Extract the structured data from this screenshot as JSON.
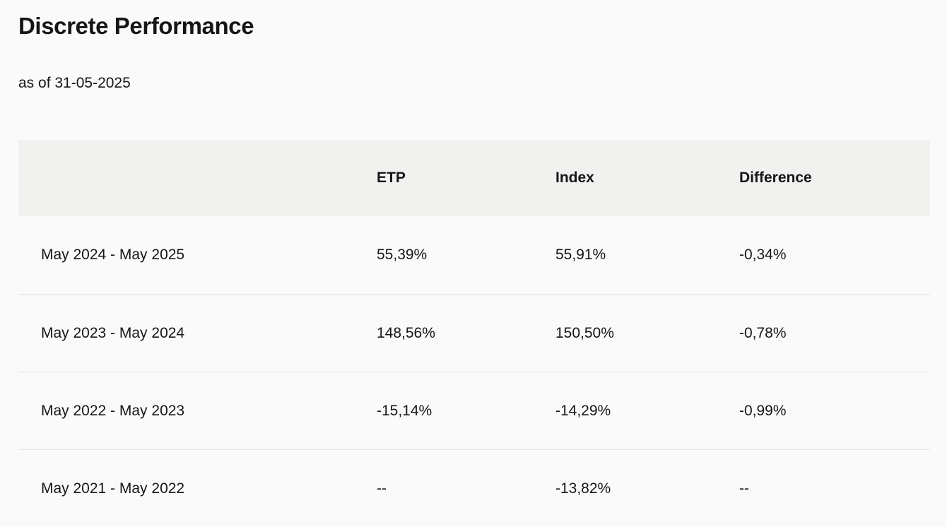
{
  "page": {
    "title": "Discrete Performance",
    "as_of": "as of 31-05-2025"
  },
  "table": {
    "columns": {
      "period": "",
      "etp": "ETP",
      "index": "Index",
      "difference": "Difference"
    },
    "rows": [
      {
        "period": "May 2024 - May 2025",
        "etp": "55,39%",
        "index": "55,91%",
        "difference": "-0,34%"
      },
      {
        "period": "May 2023 - May 2024",
        "etp": "148,56%",
        "index": "150,50%",
        "difference": "-0,78%"
      },
      {
        "period": "May 2022 - May 2023",
        "etp": "-15,14%",
        "index": "-14,29%",
        "difference": "-0,99%"
      },
      {
        "period": "May 2021 - May 2022",
        "etp": "--",
        "index": "-13,82%",
        "difference": "--"
      }
    ]
  },
  "colors": {
    "page-bg": "#fafafa",
    "header-bg": "#f1f1f0",
    "divider": "#e3e3e3",
    "text": "#161616"
  }
}
